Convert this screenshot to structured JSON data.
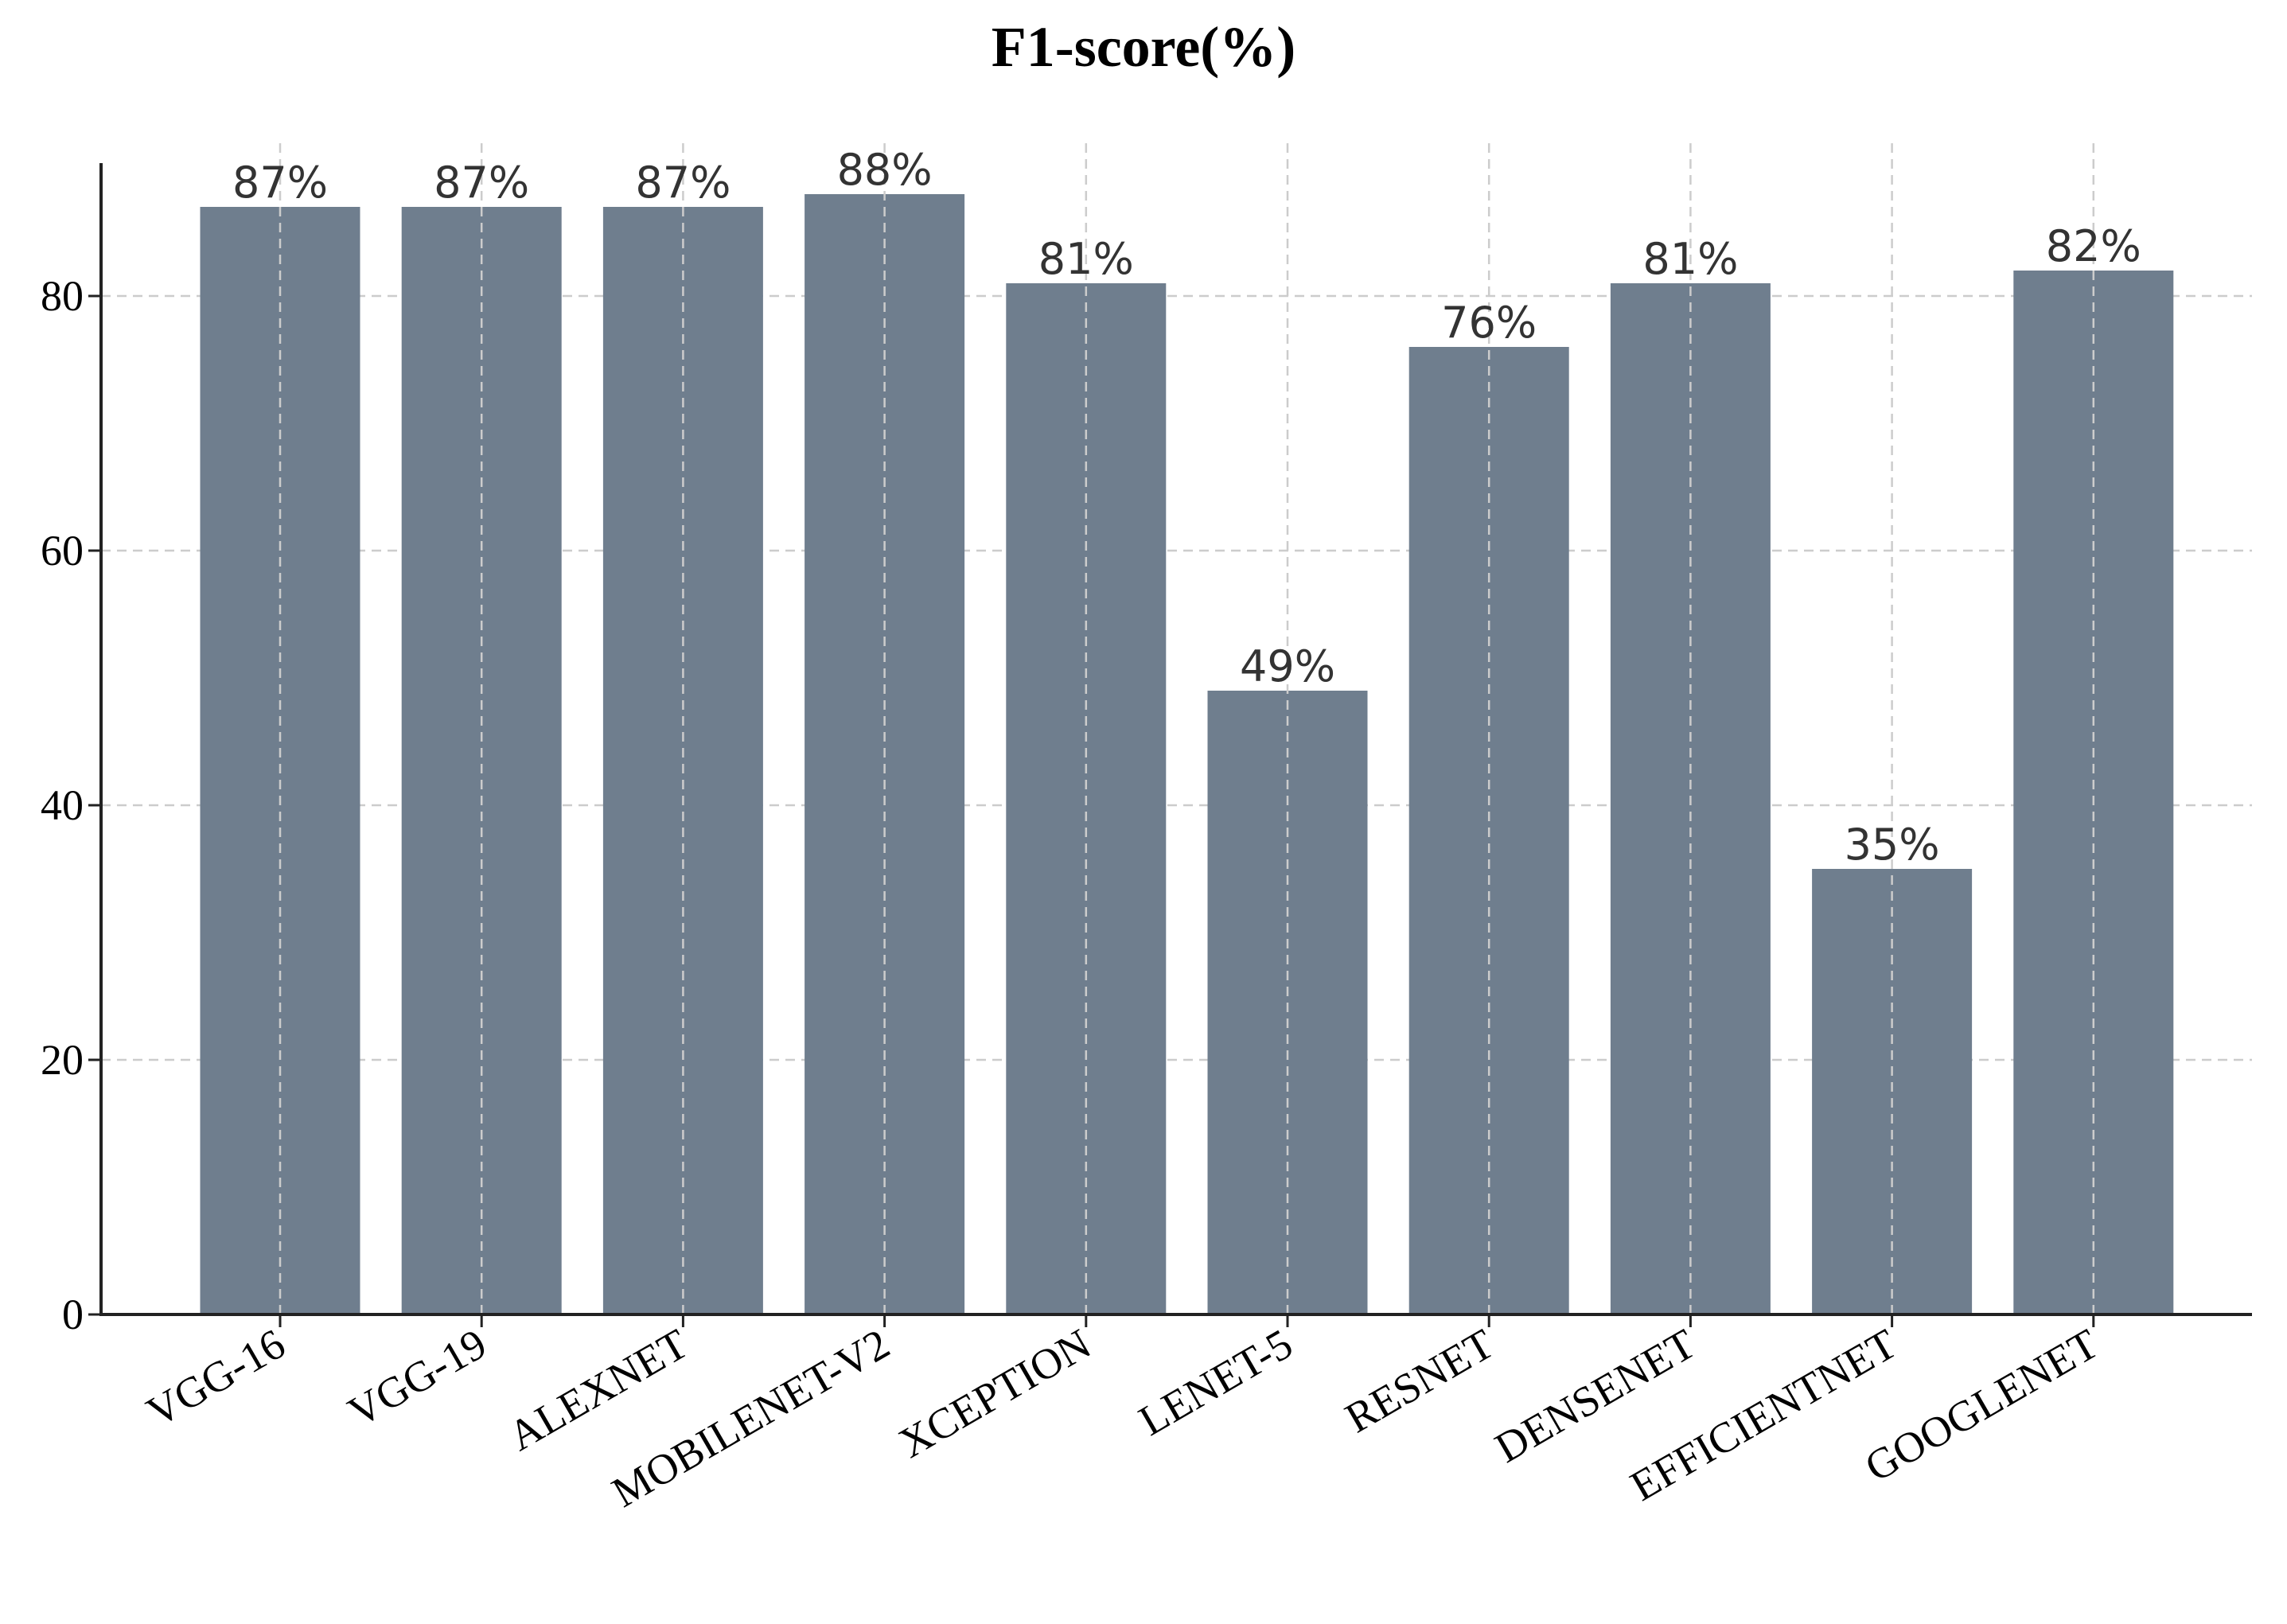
{
  "chart_data": {
    "type": "bar",
    "title": "F1-score(%)",
    "xlabel": "",
    "ylabel": "",
    "categories": [
      "VGG-16",
      "VGG-19",
      "ALEXNET",
      "MOBILENET-V2",
      "XCEPTION",
      "LENET-5",
      "RESNET",
      "DENSENET",
      "EFFICIENTNET",
      "GOOGLENET"
    ],
    "values": [
      87,
      87,
      87,
      88,
      81,
      49,
      76,
      81,
      35,
      82
    ],
    "data_labels": [
      "87%",
      "87%",
      "87%",
      "88%",
      "81%",
      "49%",
      "76%",
      "81%",
      "35%",
      "82%"
    ],
    "ylim": [
      0,
      92
    ],
    "yticks": [
      0,
      20,
      40,
      60,
      80
    ],
    "grid": true,
    "bar_color": "#6f7e8e",
    "grid_color": "#cccccc",
    "axis_color": "#222222",
    "label_color": "#333333"
  }
}
